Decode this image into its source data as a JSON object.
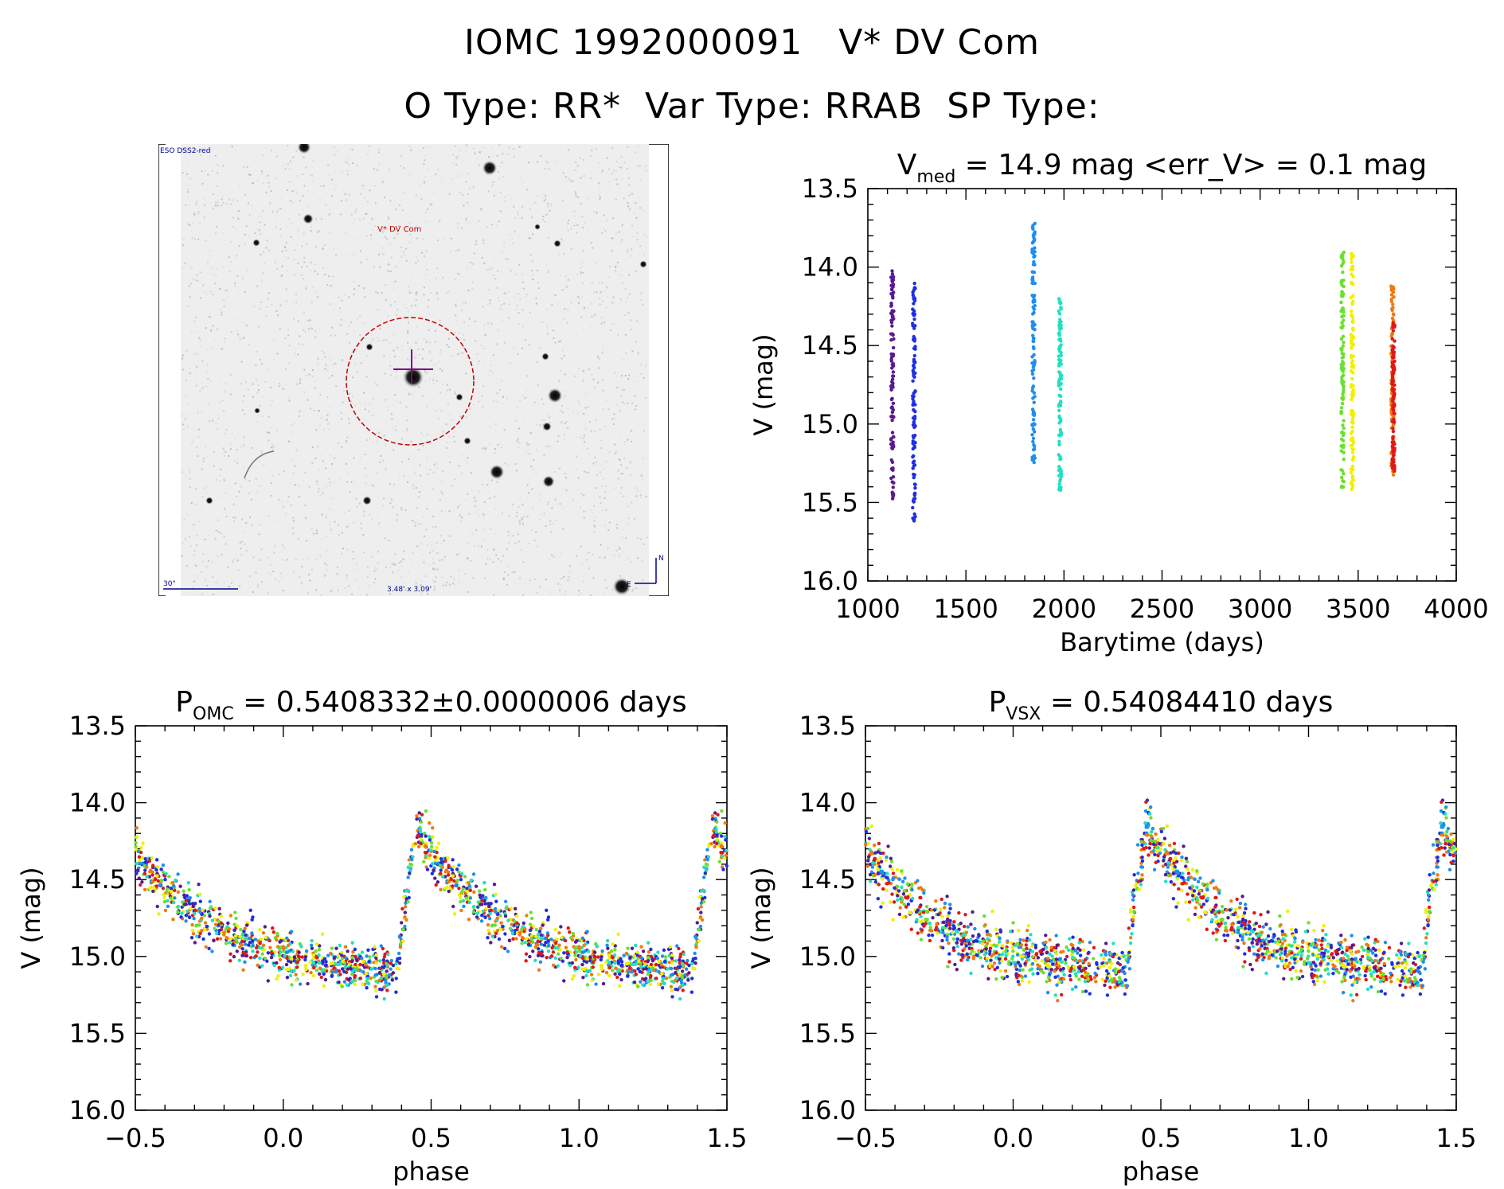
{
  "header": {
    "id": "IOMC 1992000091",
    "name": "V* DV Com",
    "otype_label": "O Type: RR*",
    "vartype_label": "Var Type: RRAB",
    "sptype_label": "SP Type:"
  },
  "finder": {
    "survey": "ESO DSS2-red",
    "target": "V* DV Com",
    "scale": "30\"",
    "field": "3.48' x 3.09'",
    "north": "N",
    "east": "E"
  },
  "colors": {
    "seg1": "#5a1a90",
    "seg2": "#1f2fe0",
    "seg3": "#1e8ef0",
    "seg4": "#20e0c0",
    "seg5": "#6ae030",
    "seg6": "#f0f000",
    "seg7": "#f07a10",
    "seg8": "#e01818"
  },
  "chart_data": [
    {
      "type": "scatter",
      "title_main": "V",
      "title_sub": "med",
      "title_rest": " = 14.9 mag <err_V> = 0.1 mag",
      "xlabel": "Barytime (days)",
      "ylabel": "V (mag)",
      "xlim": [
        1000,
        4000
      ],
      "ylim": [
        16.0,
        13.5
      ],
      "xticks": [
        "1000",
        "1500",
        "2000",
        "2500",
        "3000",
        "3500",
        "4000"
      ],
      "yticks": [
        "13.5",
        "14.0",
        "14.5",
        "15.0",
        "15.5",
        "16.0"
      ],
      "series": [
        {
          "x": 1125,
          "y_range": [
            14.02,
            15.48
          ],
          "color_key": "seg1"
        },
        {
          "x": 1235,
          "y_range": [
            14.1,
            15.63
          ],
          "color_key": "seg2"
        },
        {
          "x": 1845,
          "y_range": [
            13.72,
            15.25
          ],
          "color_key": "seg3"
        },
        {
          "x": 1980,
          "y_range": [
            14.2,
            15.43
          ],
          "color_key": "seg4"
        },
        {
          "x": 3420,
          "y_range": [
            13.9,
            15.45
          ],
          "color_key": "seg5"
        },
        {
          "x": 3470,
          "y_range": [
            13.9,
            15.42
          ],
          "color_key": "seg6"
        },
        {
          "x": 3675,
          "y_range": [
            14.12,
            15.33
          ],
          "color_key": "seg7"
        },
        {
          "x": 3680,
          "y_range": [
            14.35,
            15.3
          ],
          "color_key": "seg8"
        }
      ]
    },
    {
      "type": "scatter",
      "title_main": "P",
      "title_sub": "OMC",
      "title_rest": " = 0.5408332±0.0000006 days",
      "xlabel": "phase",
      "ylabel": "V (mag)",
      "xlim": [
        -0.5,
        1.5
      ],
      "ylim": [
        16.0,
        13.5
      ],
      "xticks": [
        "−0.5",
        "0.0",
        "0.5",
        "1.0",
        "1.5"
      ],
      "yticks": [
        "13.5",
        "14.0",
        "14.5",
        "15.0",
        "15.5",
        "16.0"
      ],
      "light_curve": {
        "max_phase": 0.45,
        "max_mag": 14.15,
        "min_mag": 15.1,
        "rise_start": 0.38,
        "scatter": 0.12
      }
    },
    {
      "type": "scatter",
      "title_main": "P",
      "title_sub": "VSX",
      "title_rest": " = 0.54084410 days",
      "xlabel": "phase",
      "ylabel": "V (mag)",
      "xlim": [
        -0.5,
        1.5
      ],
      "ylim": [
        16.0,
        13.5
      ],
      "xticks": [
        "−0.5",
        "0.0",
        "0.5",
        "1.0",
        "1.5"
      ],
      "yticks": [
        "13.5",
        "14.0",
        "14.5",
        "15.0",
        "15.5",
        "16.0"
      ],
      "light_curve": {
        "max_phase": 0.45,
        "max_mag": 14.15,
        "min_mag": 15.1,
        "rise_start": 0.38,
        "scatter": 0.14
      }
    }
  ]
}
